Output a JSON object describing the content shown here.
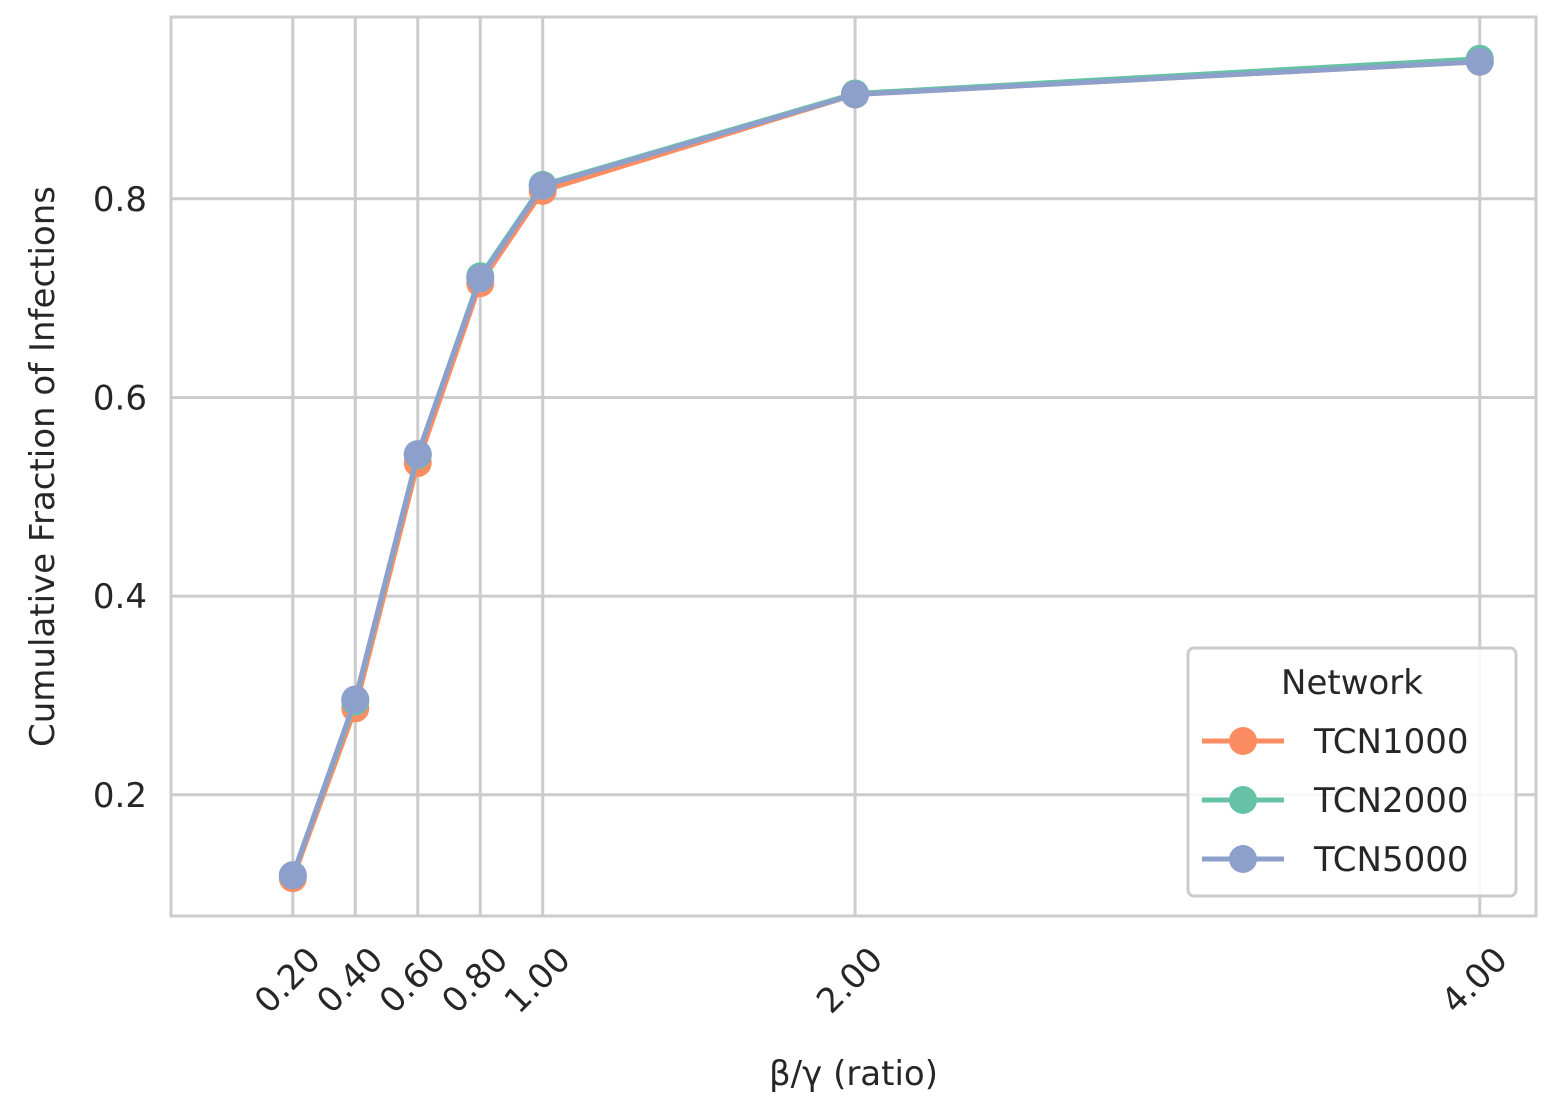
{
  "chart_data": {
    "type": "line",
    "xlabel": "β/γ (ratio)",
    "ylabel": "Cumulative Fraction of Infections",
    "x": [
      0.2,
      0.4,
      0.6,
      0.8,
      1.0,
      2.0,
      4.0
    ],
    "x_tick_labels": [
      "0.20",
      "0.40",
      "0.60",
      "0.80",
      "1.00",
      "2.00",
      "4.00"
    ],
    "xlim": [
      -0.19,
      4.18
    ],
    "y_ticks": [
      0.2,
      0.4,
      0.6,
      0.8
    ],
    "y_tick_labels": [
      "0.2",
      "0.4",
      "0.6",
      "0.8"
    ],
    "ylim": [
      0.078,
      0.983
    ],
    "grid": true,
    "legend": {
      "title": "Network",
      "placement": "lower right"
    },
    "series": [
      {
        "name": "TCN1000",
        "color": "#fc8d62",
        "values": [
          0.116,
          0.287,
          0.534,
          0.715,
          0.808,
          0.905,
          0.938
        ]
      },
      {
        "name": "TCN2000",
        "color": "#66c2a5",
        "values": [
          0.119,
          0.294,
          0.542,
          0.722,
          0.814,
          0.906,
          0.941
        ]
      },
      {
        "name": "TCN5000",
        "color": "#8da0cb",
        "values": [
          0.119,
          0.296,
          0.543,
          0.72,
          0.813,
          0.905,
          0.938
        ]
      }
    ]
  }
}
